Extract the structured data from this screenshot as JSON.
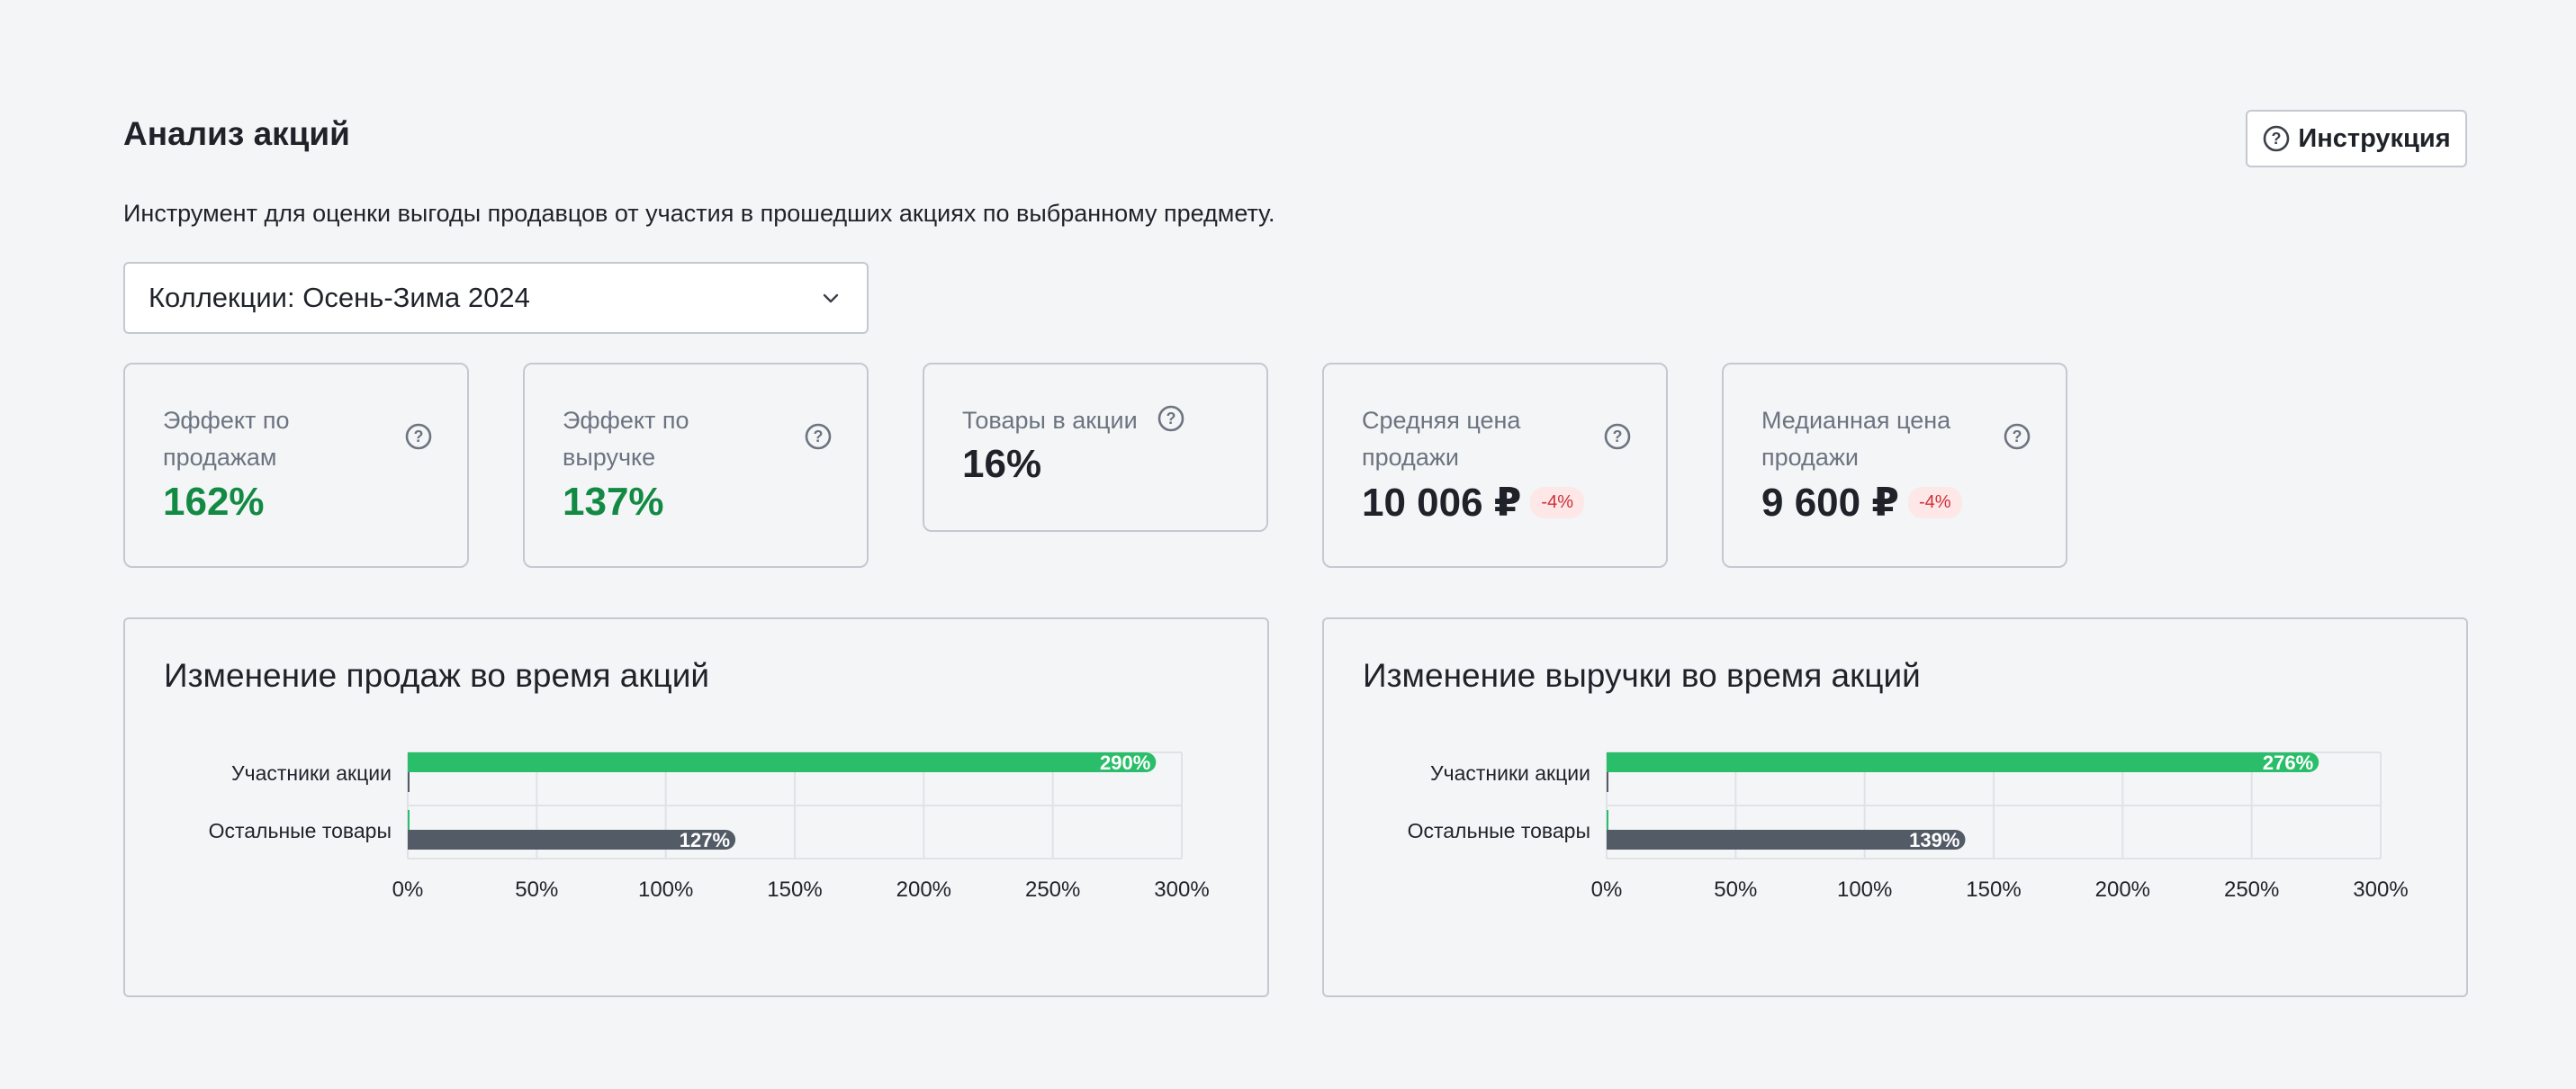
{
  "header": {
    "title": "Анализ акций",
    "help_label": "Инструкция"
  },
  "description": "Инструмент для оценки выгоды продавцов от участия в прошедших акциях по выбранному предмету.",
  "selector": {
    "value": "Коллекции: Осень-Зима 2024"
  },
  "cards": [
    {
      "label": "Эффект по продажам",
      "value": "162%",
      "positive": true
    },
    {
      "label": "Эффект по выручке",
      "value": "137%",
      "positive": true
    },
    {
      "label": "Товары в акции",
      "value": "16%"
    },
    {
      "label": "Средняя цена продажи",
      "value": "10 006 ₽",
      "delta": "-4%"
    },
    {
      "label": "Медианная цена продажи",
      "value": "9 600 ₽",
      "delta": "-4%"
    }
  ],
  "colors": {
    "promo": "#2bbe6a",
    "other": "#535b66",
    "positive": "#138a43",
    "negative": "#d0303a"
  },
  "chart_data": [
    {
      "type": "bar",
      "orientation": "horizontal",
      "title": "Изменение продаж во время акций",
      "categories": [
        "Участники акции",
        "Остальные товары"
      ],
      "series": [
        {
          "values": [
            290,
            0
          ],
          "labels": [
            "290%",
            ""
          ],
          "color": "#2bbe6a"
        },
        {
          "values": [
            0,
            127
          ],
          "labels": [
            "",
            "127%"
          ],
          "color": "#535b66"
        }
      ],
      "xlim": [
        0,
        300
      ],
      "x_ticks": [
        0,
        50,
        100,
        150,
        200,
        250,
        300
      ],
      "x_tick_labels": [
        "0%",
        "50%",
        "100%",
        "150%",
        "200%",
        "250%",
        "300%"
      ],
      "grid": true
    },
    {
      "type": "bar",
      "orientation": "horizontal",
      "title": "Изменение выручки во время акций",
      "categories": [
        "Участники акции",
        "Остальные товары"
      ],
      "series": [
        {
          "values": [
            276,
            0
          ],
          "labels": [
            "276%",
            ""
          ],
          "color": "#2bbe6a"
        },
        {
          "values": [
            0,
            139
          ],
          "labels": [
            "",
            "139%"
          ],
          "color": "#535b66"
        }
      ],
      "xlim": [
        0,
        300
      ],
      "x_ticks": [
        0,
        50,
        100,
        150,
        200,
        250,
        300
      ],
      "x_tick_labels": [
        "0%",
        "50%",
        "100%",
        "150%",
        "200%",
        "250%",
        "300%"
      ],
      "grid": true
    }
  ]
}
